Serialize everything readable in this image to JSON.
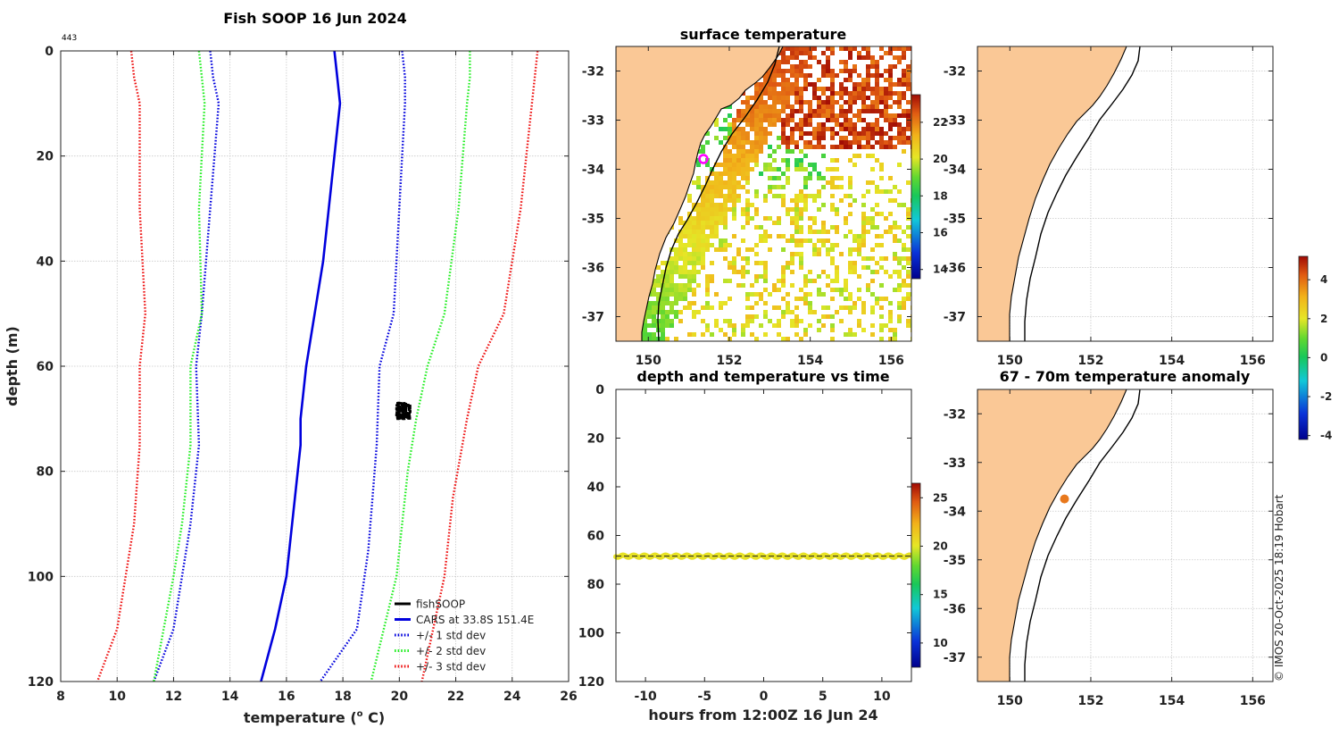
{
  "chart_data": [
    {
      "type": "line",
      "title": "Fish SOOP 16 Jun 2024",
      "annotation": "443",
      "xlabel": "temperature (",
      "xlabel_sup": "o",
      "xlabel_tail": " C)",
      "ylabel": "depth (m)",
      "xlim": [
        8,
        26
      ],
      "ylim": [
        0,
        120
      ],
      "xticks": [
        8,
        10,
        12,
        14,
        16,
        18,
        20,
        22,
        24,
        26
      ],
      "yticks": [
        0,
        20,
        40,
        60,
        80,
        100,
        120
      ],
      "legend_position": "bottom-right",
      "series": [
        {
          "name": "CARS at 33.8S 151.4E",
          "color": "#0000dd",
          "style": "solid",
          "points": [
            [
              17.7,
              0
            ],
            [
              17.8,
              5
            ],
            [
              17.9,
              10
            ],
            [
              17.7,
              20
            ],
            [
              17.5,
              30
            ],
            [
              17.3,
              40
            ],
            [
              17.0,
              50
            ],
            [
              16.7,
              60
            ],
            [
              16.5,
              70
            ],
            [
              16.5,
              75
            ],
            [
              16.3,
              85
            ],
            [
              16.0,
              100
            ],
            [
              15.6,
              110
            ],
            [
              15.1,
              120
            ]
          ]
        },
        {
          "name": "+/- 1 std dev",
          "color": "#0000dd",
          "style": "dotted",
          "points": [
            [
              13.3,
              0
            ],
            [
              13.4,
              5
            ],
            [
              13.6,
              10
            ],
            [
              13.3,
              30
            ],
            [
              13.0,
              50
            ],
            [
              12.8,
              60
            ],
            [
              12.9,
              75
            ],
            [
              12.6,
              90
            ],
            [
              12.0,
              110
            ],
            [
              11.3,
              120
            ]
          ]
        },
        {
          "name": "+/- 1 std dev (upper)",
          "color": "#0000dd",
          "style": "dotted",
          "points": [
            [
              20.1,
              0
            ],
            [
              20.2,
              5
            ],
            [
              20.2,
              10
            ],
            [
              20.0,
              30
            ],
            [
              19.8,
              50
            ],
            [
              19.3,
              60
            ],
            [
              19.2,
              75
            ],
            [
              18.9,
              95
            ],
            [
              18.5,
              110
            ],
            [
              17.2,
              120
            ]
          ]
        },
        {
          "name": "+/- 2 std dev",
          "color": "#22ee22",
          "style": "dotted",
          "points": [
            [
              12.9,
              0
            ],
            [
              13.0,
              5
            ],
            [
              13.1,
              10
            ],
            [
              12.9,
              30
            ],
            [
              13.0,
              50
            ],
            [
              12.6,
              60
            ],
            [
              12.6,
              75
            ],
            [
              12.3,
              90
            ],
            [
              12.0,
              100
            ],
            [
              11.3,
              120
            ]
          ]
        },
        {
          "name": "+/- 2 std dev (upper)",
          "color": "#22ee22",
          "style": "dotted",
          "points": [
            [
              22.5,
              0
            ],
            [
              22.5,
              5
            ],
            [
              22.4,
              10
            ],
            [
              22.1,
              30
            ],
            [
              21.6,
              50
            ],
            [
              21.0,
              60
            ],
            [
              20.6,
              70
            ],
            [
              20.3,
              80
            ],
            [
              19.9,
              100
            ],
            [
              19.0,
              120
            ]
          ]
        },
        {
          "name": "+/- 3 std dev",
          "color": "#ee1111",
          "style": "dotted",
          "points": [
            [
              10.5,
              0
            ],
            [
              10.6,
              5
            ],
            [
              10.8,
              10
            ],
            [
              10.8,
              30
            ],
            [
              11.0,
              50
            ],
            [
              10.8,
              60
            ],
            [
              10.8,
              75
            ],
            [
              10.6,
              90
            ],
            [
              10.0,
              110
            ],
            [
              9.3,
              120
            ]
          ]
        },
        {
          "name": "+/- 3 std dev (upper)",
          "color": "#ee1111",
          "style": "dotted",
          "points": [
            [
              24.9,
              0
            ],
            [
              24.8,
              5
            ],
            [
              24.7,
              10
            ],
            [
              24.3,
              30
            ],
            [
              23.7,
              50
            ],
            [
              22.8,
              60
            ],
            [
              22.4,
              70
            ],
            [
              21.9,
              85
            ],
            [
              21.6,
              100
            ],
            [
              20.8,
              120
            ]
          ]
        }
      ],
      "fishsoop": {
        "name": "fishSOOP",
        "color": "#000000",
        "temp_range": [
          19.9,
          20.4
        ],
        "depth_range": [
          67,
          70
        ]
      },
      "legend": [
        {
          "label": "fishSOOP",
          "color": "#000000",
          "style": "solid"
        },
        {
          "label": "CARS at 33.8S 151.4E",
          "color": "#0000dd",
          "style": "solid"
        },
        {
          "label": "+/- 1 std dev",
          "color": "#0000dd",
          "style": "dotted"
        },
        {
          "label": "+/- 2 std dev",
          "color": "#22ee22",
          "style": "dotted"
        },
        {
          "label": "+/- 3 std dev",
          "color": "#ee1111",
          "style": "dotted"
        }
      ]
    },
    {
      "type": "heatmap",
      "title": "surface temperature",
      "xlim": [
        149.2,
        156.5
      ],
      "ylim": [
        -37.5,
        -31.5
      ],
      "xticks": [
        150,
        152,
        154,
        156
      ],
      "yticks": [
        -32,
        -33,
        -34,
        -35,
        -36,
        -37
      ],
      "colorbar": {
        "min": 13.5,
        "max": 23.5,
        "ticks": [
          14,
          16,
          18,
          20,
          22
        ]
      },
      "marker": {
        "lon": 151.4,
        "lat": -33.8,
        "color": "#ff00ff"
      }
    },
    {
      "type": "scatter",
      "title": "",
      "xlim": [
        149.2,
        156.5
      ],
      "ylim": [
        -37.5,
        -31.5
      ],
      "xticks": [
        150,
        152,
        154,
        156
      ],
      "yticks": [
        -32,
        -33,
        -34,
        -35,
        -36,
        -37
      ]
    },
    {
      "type": "scatter",
      "title": "depth and temperature vs time",
      "xlabel": "hours from 12:00Z 16 Jun 24",
      "xlim": [
        -12.5,
        12.5
      ],
      "ylim": [
        0,
        120
      ],
      "xticks": [
        -10,
        -5,
        0,
        5,
        10
      ],
      "yticks": [
        0,
        20,
        40,
        60,
        80,
        100,
        120
      ],
      "depth": 68.5,
      "temperature": 20.2,
      "colorbar": {
        "min": 7.5,
        "max": 26.5,
        "ticks": [
          10,
          15,
          20,
          25
        ]
      }
    },
    {
      "type": "scatter",
      "title": "67 - 70m temperature anomaly",
      "xlim": [
        149.2,
        156.5
      ],
      "ylim": [
        -37.5,
        -31.5
      ],
      "xticks": [
        150,
        152,
        154,
        156
      ],
      "yticks": [
        -32,
        -33,
        -34,
        -35,
        -36,
        -37
      ],
      "point": {
        "lon": 151.35,
        "lat": -33.75,
        "anomaly": 2.3,
        "color": "#e8781c"
      },
      "colorbar": {
        "min": -4.2,
        "max": 5.2,
        "ticks": [
          -4,
          -2,
          0,
          2,
          4
        ]
      }
    }
  ],
  "credit": "© IMOS 20-Oct-2025 18:19 Hobart"
}
